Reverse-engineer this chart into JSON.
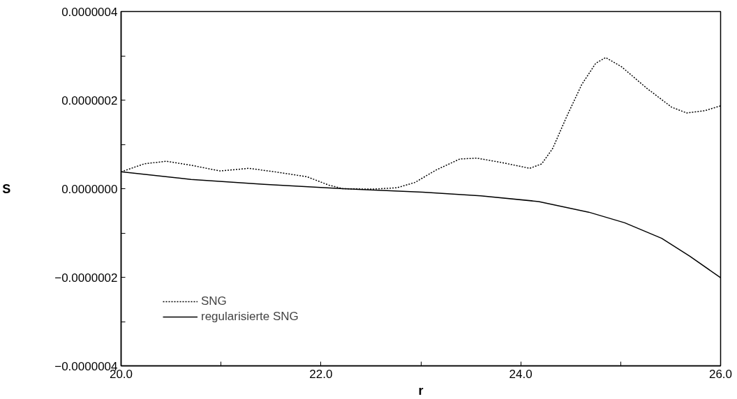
{
  "chart_data": {
    "type": "line",
    "xlabel": "r",
    "ylabel": "S",
    "xlim": [
      20,
      26
    ],
    "ylim": [
      -4e-07,
      4e-07
    ],
    "xticks": [
      {
        "value": 20,
        "label": "20.0"
      },
      {
        "value": 21,
        "label": null
      },
      {
        "value": 22,
        "label": "22.0"
      },
      {
        "value": 23,
        "label": null
      },
      {
        "value": 24,
        "label": "24.0"
      },
      {
        "value": 25,
        "label": null
      },
      {
        "value": 26,
        "label": "26.0"
      }
    ],
    "yticks": [
      {
        "value": -4e-07,
        "label": "−0.0000004"
      },
      {
        "value": -3e-07,
        "label": null
      },
      {
        "value": -2e-07,
        "label": "−0.0000002"
      },
      {
        "value": -1e-07,
        "label": null
      },
      {
        "value": 0,
        "label": "0.0000000"
      },
      {
        "value": 1e-07,
        "label": null
      },
      {
        "value": 2e-07,
        "label": "0.0000002"
      },
      {
        "value": 3e-07,
        "label": null
      },
      {
        "value": 4e-07,
        "label": "0.0000004"
      }
    ],
    "grid": false,
    "legend": "bottom left",
    "series": [
      {
        "name": "SNG",
        "color": "#000000",
        "line_style": "dotted",
        "x": [
          20.0,
          20.23,
          20.45,
          20.7,
          20.99,
          21.28,
          21.57,
          21.86,
          22.08,
          22.22,
          22.51,
          22.76,
          22.94,
          23.16,
          23.39,
          23.56,
          23.81,
          24.09,
          24.21,
          24.32,
          24.46,
          24.61,
          24.75,
          24.85,
          25.01,
          25.26,
          25.51,
          25.66,
          25.84,
          26.0
        ],
        "values": [
          3.8e-08,
          5.6e-08,
          6.2e-08,
          5.3e-08,
          4e-08,
          4.6e-08,
          3.7e-08,
          2.7e-08,
          8e-09,
          0.0,
          -1e-09,
          2e-09,
          1.4e-08,
          4.3e-08,
          6.7e-08,
          6.9e-08,
          5.9e-08,
          4.6e-08,
          5.6e-08,
          9.1e-08,
          1.63e-07,
          2.35e-07,
          2.83e-07,
          2.96e-07,
          2.75e-07,
          2.27e-07,
          1.84e-07,
          1.71e-07,
          1.76e-07,
          1.87e-07
        ]
      },
      {
        "name": "regularisierte SNG",
        "color": "#000000",
        "line_style": "solid",
        "x": [
          20.0,
          20.7,
          21.43,
          22.22,
          23.02,
          23.6,
          24.18,
          24.68,
          25.04,
          25.41,
          25.69,
          26.0
        ],
        "values": [
          3.8e-08,
          2.1e-08,
          1e-08,
          0.0,
          -8e-09,
          -1.6e-08,
          -2.9e-08,
          -5.3e-08,
          -7.7e-08,
          -1.12e-07,
          -1.52e-07,
          -2.01e-07
        ]
      }
    ]
  }
}
